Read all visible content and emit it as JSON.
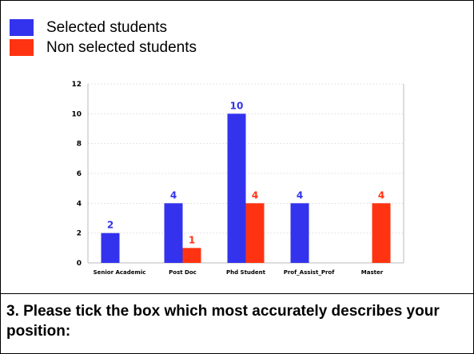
{
  "legend": [
    {
      "label": "Selected students",
      "color": "#3333ee"
    },
    {
      "label": "Non selected students",
      "color": "#ff3311"
    }
  ],
  "chart_data": {
    "type": "bar",
    "categories": [
      "Senior Academic",
      "Post Doc",
      "Phd Student",
      "Prof_Assist_Prof",
      "Master"
    ],
    "series": [
      {
        "name": "Selected students",
        "color": "#3333ee",
        "values": [
          2,
          4,
          10,
          4,
          null
        ]
      },
      {
        "name": "Non selected students",
        "color": "#ff3311",
        "values": [
          null,
          1,
          4,
          null,
          4
        ]
      }
    ],
    "ylim": [
      0,
      12
    ],
    "yticks": [
      "0",
      "2",
      "4",
      "6",
      "8",
      "10",
      "12"
    ],
    "grid": true,
    "legend_position": "top-left",
    "title": "",
    "xlabel": "",
    "ylabel": ""
  },
  "question": "3. Please tick the box which most accurately describes your position:"
}
